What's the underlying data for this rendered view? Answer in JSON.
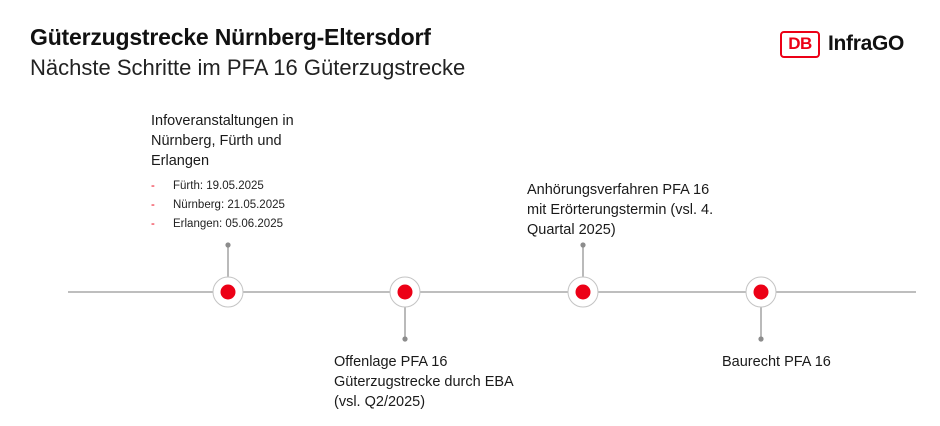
{
  "header": {
    "title": "Güterzugstrecke Nürnberg-Eltersdorf",
    "subtitle": "Nächste Schritte im PFA 16 Güterzugstrecke"
  },
  "logo": {
    "mark": "DB",
    "brand": "InfraGO"
  },
  "colors": {
    "accent": "#ec0016",
    "line": "#a8a8a8",
    "connector": "#8c8c8c"
  },
  "timeline": {
    "milestones": [
      {
        "text": "Infoveranstaltungen in\nNürnberg, Fürth und\nErlangen",
        "position": "above",
        "bullet_marker": "-",
        "details": [
          "Fürth: 19.05.2025",
          "Nürnberg: 21.05.2025",
          "Erlangen: 05.06.2025"
        ]
      },
      {
        "text": "Offenlage PFA 16\nGüterzugstrecke durch EBA\n(vsl. Q2/2025)",
        "position": "below"
      },
      {
        "text": "Anhörungsverfahren PFA 16\nmit Erörterungstermin (vsl. 4.\nQuartal 2025)",
        "position": "above"
      },
      {
        "text": "Baurecht PFA 16",
        "position": "below"
      }
    ]
  }
}
